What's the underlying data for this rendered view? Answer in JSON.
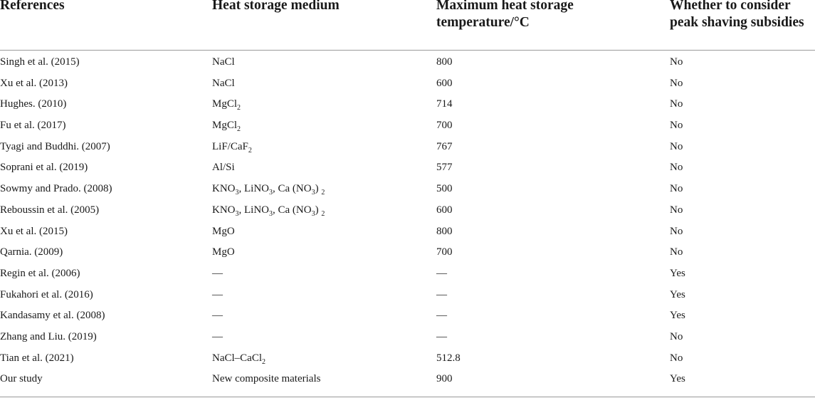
{
  "table": {
    "headers": [
      "References",
      "Heat storage medium",
      "Maximum heat storage temperature/°C",
      "Whether to consider peak shaving subsidies"
    ],
    "header_lines": {
      "h1": [
        "References"
      ],
      "h2": [
        "Heat storage medium"
      ],
      "h3": [
        "Maximum heat storage",
        "temperature/°C"
      ],
      "h4": [
        "Whether to consider",
        "peak shaving subsidies"
      ]
    },
    "rows": [
      {
        "reference": "Singh et al. (2015)",
        "medium": [
          "NaCl"
        ],
        "temperature": "800",
        "subsidies": "No"
      },
      {
        "reference": "Xu et al. (2013)",
        "medium": [
          "NaCl"
        ],
        "temperature": "600",
        "subsidies": "No"
      },
      {
        "reference": "Hughes. (2010)",
        "medium": [
          "MgCl",
          {
            "sub": "2"
          }
        ],
        "temperature": "714",
        "subsidies": "No"
      },
      {
        "reference": "Fu et al. (2017)",
        "medium": [
          "MgCl",
          {
            "sub": "2"
          }
        ],
        "temperature": "700",
        "subsidies": "No"
      },
      {
        "reference": "Tyagi and Buddhi. (2007)",
        "medium": [
          "LiF/CaF",
          {
            "sub": "2"
          }
        ],
        "temperature": "767",
        "subsidies": "No"
      },
      {
        "reference": "Soprani et al. (2019)",
        "medium": [
          "Al/Si"
        ],
        "temperature": "577",
        "subsidies": "No"
      },
      {
        "reference": "Sowmy and Prado. (2008)",
        "medium": [
          "KNO",
          {
            "sub": "3"
          },
          ", LiNO",
          {
            "sub": "3"
          },
          ", Ca (NO",
          {
            "sub": "3"
          },
          ") ",
          {
            "sub": "2"
          }
        ],
        "temperature": "500",
        "subsidies": "No"
      },
      {
        "reference": "Reboussin et al. (2005)",
        "medium": [
          "KNO",
          {
            "sub": "3"
          },
          ", LiNO",
          {
            "sub": "3"
          },
          ", Ca (NO",
          {
            "sub": "3"
          },
          ") ",
          {
            "sub": "2"
          }
        ],
        "temperature": "600",
        "subsidies": "No"
      },
      {
        "reference": "Xu et al. (2015)",
        "medium": [
          "MgO"
        ],
        "temperature": "800",
        "subsidies": "No"
      },
      {
        "reference": "Qarnia. (2009)",
        "medium": [
          "MgO"
        ],
        "temperature": "700",
        "subsidies": "No"
      },
      {
        "reference": "Regin et al. (2006)",
        "medium": [
          "—"
        ],
        "temperature": "—",
        "subsidies": "Yes"
      },
      {
        "reference": "Fukahori et al. (2016)",
        "medium": [
          "—"
        ],
        "temperature": "—",
        "subsidies": "Yes"
      },
      {
        "reference": "Kandasamy et al. (2008)",
        "medium": [
          "—"
        ],
        "temperature": "—",
        "subsidies": "Yes"
      },
      {
        "reference": "Zhang and Liu. (2019)",
        "medium": [
          "—"
        ],
        "temperature": "—",
        "subsidies": "No"
      },
      {
        "reference": "Tian et al. (2021)",
        "medium": [
          "NaCl–CaCl",
          {
            "sub": "2"
          }
        ],
        "temperature": "512.8",
        "subsidies": "No"
      },
      {
        "reference": "Our study",
        "medium": [
          "New composite materials"
        ],
        "temperature": "900",
        "subsidies": "Yes"
      }
    ]
  },
  "colors": {
    "text": "#1a1a1a",
    "rule": "#9a9a9a",
    "background": "#ffffff"
  }
}
